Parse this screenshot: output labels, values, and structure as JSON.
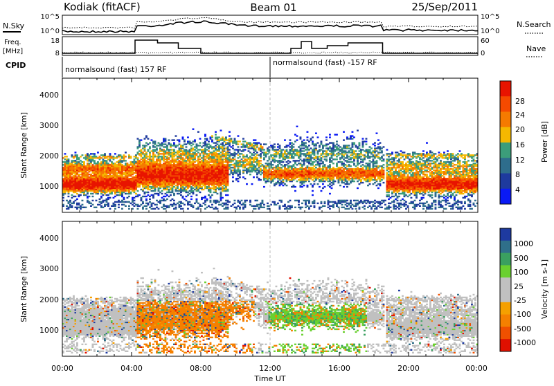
{
  "header": {
    "station": "Kodiak (fitACF)",
    "beam": "Beam 01",
    "date": "25/Sep/2011"
  },
  "top_panel": {
    "left_label": "N.Sky",
    "right_label": "N.Search",
    "left_ticks": [
      "10^5",
      "10^0"
    ],
    "right_ticks": [
      "10^5",
      "10^0"
    ]
  },
  "freq_panel": {
    "left_label_1": "Freq.",
    "left_label_2": "[MHz]",
    "right_label": "Nave",
    "left_ticks": [
      "18",
      "8"
    ],
    "right_ticks": [
      "60",
      "0"
    ]
  },
  "cpid": {
    "label": "CPID",
    "segments": [
      {
        "text": "normalsound (fast) 157 RF",
        "start_hour": 0
      },
      {
        "text": "normalsound (fast) -157 RF",
        "start_hour": 12
      }
    ]
  },
  "colors": {
    "power_scale": [
      "#0a1af5",
      "#1e3a9e",
      "#2e6d8c",
      "#3c9d7a",
      "#f5b800",
      "#f57a00",
      "#f54a00",
      "#e81400"
    ],
    "velocity_scale": [
      "#1e3aa0",
      "#2f6f8a",
      "#3aa060",
      "#6ad030",
      "#c0c0c0",
      "#c0c0c0",
      "#f5a000",
      "#f58000",
      "#f05000",
      "#e01000"
    ]
  },
  "chart_data": [
    {
      "type": "heatmap",
      "name": "power",
      "ylabel": "Slant Range [km]",
      "ylim": [
        200,
        4600
      ],
      "yticks": [
        "1000",
        "2000",
        "3000",
        "4000"
      ],
      "xlim_hours": [
        0,
        24
      ],
      "colorbar_label": "Power [dB]",
      "colorbar_ticks": [
        "28",
        "24",
        "20",
        "16",
        "12",
        "8",
        "4"
      ],
      "colorbar_range": [
        0,
        32
      ]
    },
    {
      "type": "heatmap",
      "name": "velocity",
      "ylabel": "Slant Range [km]",
      "ylim": [
        200,
        4600
      ],
      "yticks": [
        "1000",
        "2000",
        "3000",
        "4000"
      ],
      "xlim_hours": [
        0,
        24
      ],
      "colorbar_label": "Velocity [m s-1]",
      "colorbar_ticks": [
        "1000",
        "500",
        "100",
        "25",
        "-25",
        "-100",
        "-500",
        "-1000"
      ]
    }
  ],
  "x_axis": {
    "ticks": [
      "00:00",
      "04:00",
      "08:00",
      "12:00",
      "16:00",
      "20:00",
      "00:00"
    ],
    "label": "Time UT"
  }
}
